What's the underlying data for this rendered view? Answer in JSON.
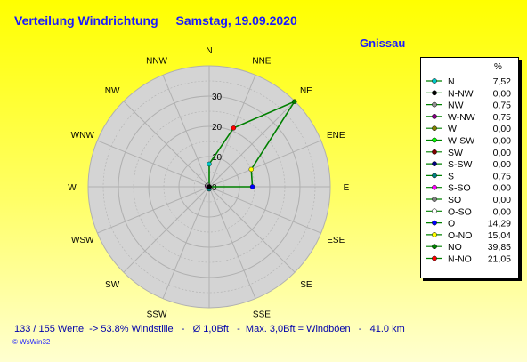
{
  "header": {
    "title": "Verteilung Windrichtung",
    "date": "Samstag, 19.09.2020",
    "station": "Gnissau"
  },
  "colors": {
    "grid_fill": "#d4d4d4",
    "grid_line": "#b0b0b0",
    "series": "#008000",
    "title": "#1a1aff"
  },
  "chart_data": {
    "type": "radar",
    "directions": [
      "N",
      "NNE",
      "NE",
      "ENE",
      "E",
      "ESE",
      "SE",
      "SSE",
      "S",
      "SSW",
      "SW",
      "WSW",
      "W",
      "WNW",
      "NW",
      "NNW"
    ],
    "radial_ticks": [
      "0",
      "10",
      "20",
      "30"
    ],
    "rmax": 40,
    "values": [
      7.52,
      21.05,
      39.85,
      15.04,
      14.29,
      0.0,
      0.0,
      0.0,
      0.75,
      0.0,
      0.0,
      0.0,
      0.0,
      0.75,
      0.75,
      0.0
    ],
    "legend_header": "%",
    "legend": [
      {
        "label": "N",
        "value": "7,52",
        "color": "#00c8c8"
      },
      {
        "label": "N-NW",
        "value": "0,00",
        "color": "#000000"
      },
      {
        "label": "NW",
        "value": "0,75",
        "color": "#909090"
      },
      {
        "label": "W-NW",
        "value": "0,75",
        "color": "#800080"
      },
      {
        "label": "W",
        "value": "0,00",
        "color": "#808000"
      },
      {
        "label": "W-SW",
        "value": "0,00",
        "color": "#00ff00"
      },
      {
        "label": "SW",
        "value": "0,00",
        "color": "#800000"
      },
      {
        "label": "S-SW",
        "value": "0,00",
        "color": "#000080"
      },
      {
        "label": "S",
        "value": "0,75",
        "color": "#008080"
      },
      {
        "label": "S-SO",
        "value": "0,00",
        "color": "#ff00ff"
      },
      {
        "label": "SO",
        "value": "0,00",
        "color": "#808080"
      },
      {
        "label": "O-SO",
        "value": "0,00",
        "color": "#ffffff"
      },
      {
        "label": "O",
        "value": "14,29",
        "color": "#0000ff"
      },
      {
        "label": "O-NO",
        "value": "15,04",
        "color": "#ffff00"
      },
      {
        "label": "NO",
        "value": "39,85",
        "color": "#008000"
      },
      {
        "label": "N-NO",
        "value": "21,05",
        "color": "#ff0000"
      }
    ]
  },
  "footer": {
    "text": "133 / 155 Werte  -> 53.8% Windstille   -   Ø 1,0Bft   -  Max. 3,0Bft = Windböen   -   41.0 km",
    "credit": "© WsWin32"
  }
}
